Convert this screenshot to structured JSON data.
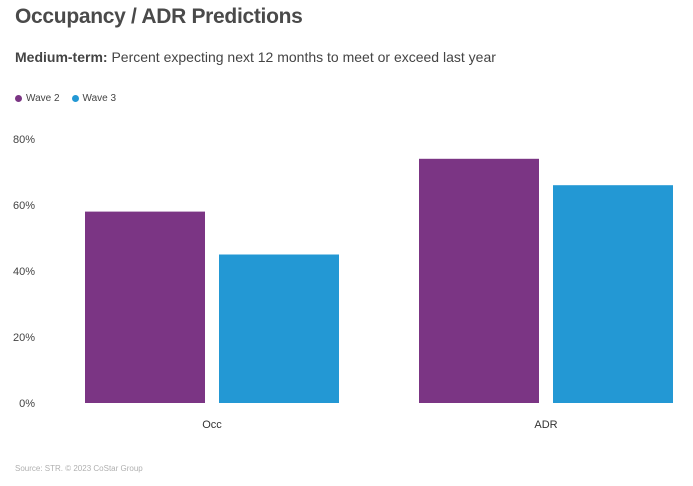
{
  "title": "Occupancy / ADR Predictions",
  "subtitle": {
    "bold": "Medium-term:",
    "text": "Percent expecting next 12 months to meet or exceed last year"
  },
  "source": "Source: STR. © 2023 CoStar Group",
  "colors": {
    "wave2": "#7b3584",
    "wave3": "#2398d4"
  },
  "chart_data": {
    "type": "bar",
    "categories": [
      "Occ",
      "ADR"
    ],
    "series": [
      {
        "name": "Wave 2",
        "values": [
          58,
          74
        ]
      },
      {
        "name": "Wave 3",
        "values": [
          45,
          66
        ]
      }
    ],
    "ylim": [
      0,
      80
    ],
    "yticks": [
      0,
      20,
      40,
      60,
      80
    ],
    "ytick_labels": [
      "0%",
      "20%",
      "40%",
      "60%",
      "80%"
    ],
    "legend": "top-left",
    "grid": false
  }
}
